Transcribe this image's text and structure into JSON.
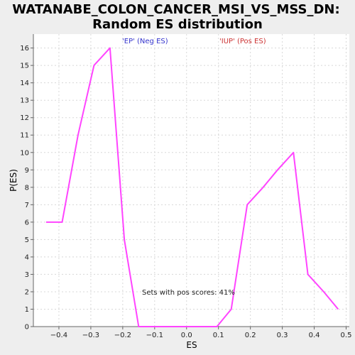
{
  "chart_data": {
    "type": "line",
    "title": "WATANABE_COLON_CANCER_MSI_VS_MSS_DN: Random ES distribution",
    "title_lines": [
      "WATANABE_COLON_CANCER_MSI_VS_MSS_DN:",
      "Random ES distribution"
    ],
    "xlabel": "ES",
    "ylabel": "P(ES)",
    "xlim": [
      -0.48,
      0.51
    ],
    "ylim": [
      0,
      16.8
    ],
    "xticks": [
      -0.4,
      -0.3,
      -0.2,
      -0.1,
      0.0,
      0.1,
      0.2,
      0.3,
      0.4,
      0.5
    ],
    "xtick_labels": [
      "−0.4",
      "−0.3",
      "−0.2",
      "−0.1",
      "0.0",
      "0.1",
      "0.2",
      "0.3",
      "0.4",
      "0.5"
    ],
    "yticks": [
      0,
      1,
      2,
      3,
      4,
      5,
      6,
      7,
      8,
      9,
      10,
      11,
      12,
      13,
      14,
      15,
      16
    ],
    "grid": true,
    "series": [
      {
        "color": "#ff44ff",
        "x": [
          -0.44,
          -0.39,
          -0.34,
          -0.29,
          -0.24,
          -0.195,
          -0.15,
          -0.1,
          -0.05,
          0.0,
          0.05,
          0.095,
          0.14,
          0.19,
          0.24,
          0.285,
          0.335,
          0.38,
          0.43,
          0.475
        ],
        "y": [
          6,
          6,
          11,
          15,
          16,
          5,
          0,
          0,
          0,
          0,
          0,
          0,
          1,
          7,
          8,
          9,
          10,
          3,
          2,
          1
        ]
      }
    ],
    "annotations": {
      "neg_label": "'EP' (Neg ES)",
      "neg_color": "#3333cc",
      "pos_label": "'IUP' (Pos ES)",
      "pos_color": "#cc3333",
      "sets_text": "Sets with pos scores: 41%"
    },
    "plot_background": "#ffffff",
    "page_background": "#eeeeee"
  }
}
